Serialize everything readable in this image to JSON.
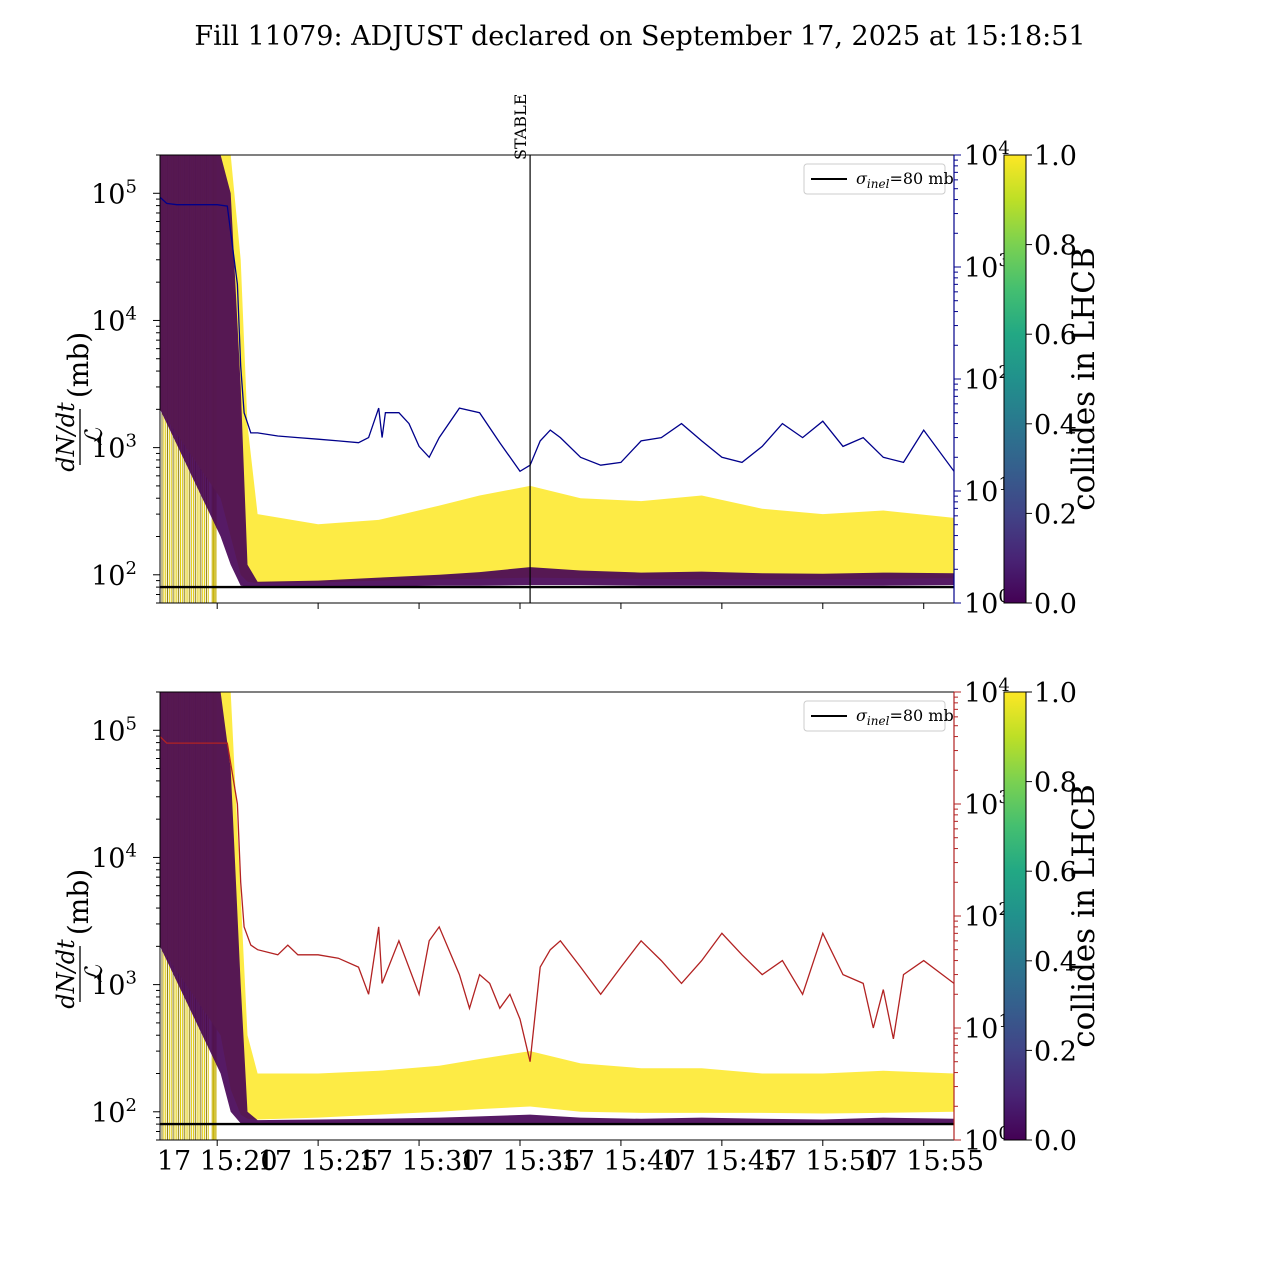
{
  "title": "Fill 11079: ADJUST declared on September 17, 2025 at 15:18:51",
  "colors": {
    "yellow": "#fde725",
    "purple": "#440154",
    "navy": "#00008b",
    "red": "#b22222",
    "black": "#000000"
  },
  "chart_data": [
    {
      "type": "line",
      "panel": "top",
      "ylabel": "dN/dt / ℒ (mb)",
      "y_scale": "log",
      "ylim": [
        60,
        200000
      ],
      "yticks": [
        "10^2",
        "10^3",
        "10^4",
        "10^5"
      ],
      "y2_scale": "log",
      "y2lim": [
        1,
        10000
      ],
      "y2ticks": [
        "10^0",
        "10^1",
        "10^2",
        "10^3",
        "10^4"
      ],
      "y2_color": "#00008b",
      "xlim": [
        "15:17:10",
        "15:56:30"
      ],
      "xticks": [],
      "annotation": {
        "label": "STABLE",
        "x": "15:35:30"
      },
      "legend": {
        "entries": [
          {
            "label": "σinel=80 mb",
            "color": "#000000"
          }
        ],
        "position": "upper right"
      },
      "reference_line": {
        "y": 80
      },
      "colorbar": {
        "label": "collides in LHCB",
        "range": [
          0.0,
          1.0
        ],
        "ticks": [
          "0.0",
          "0.2",
          "0.4",
          "0.6",
          "0.8",
          "1.0"
        ]
      },
      "band_series": [
        {
          "name": "collides",
          "color_value": 1.0,
          "x": [
            "15:17:10",
            "15:20:10",
            "15:20:40",
            "15:21:10",
            "15:21:30",
            "15:22:00",
            "15:25:00",
            "15:28:00",
            "15:31:00",
            "15:33:00",
            "15:35:30",
            "15:38:00",
            "15:41:00",
            "15:44:00",
            "15:47:00",
            "15:50:00",
            "15:53:00",
            "15:56:30"
          ],
          "low": [
            2000,
            400,
            200,
            100,
            88,
            86,
            87,
            90,
            92,
            93,
            95,
            94,
            93,
            92,
            92,
            92,
            93,
            94
          ],
          "high": [
            200000,
            200000,
            200000,
            30000,
            1500,
            300,
            250,
            270,
            350,
            420,
            500,
            400,
            380,
            420,
            330,
            300,
            320,
            280
          ]
        },
        {
          "name": "non-colliding",
          "color_value": 0.0,
          "x": [
            "15:17:10",
            "15:20:10",
            "15:20:40",
            "15:21:10",
            "15:21:30",
            "15:22:00",
            "15:25:00",
            "15:28:00",
            "15:31:00",
            "15:33:00",
            "15:35:30",
            "15:38:00",
            "15:41:00",
            "15:44:00",
            "15:47:00",
            "15:50:00",
            "15:53:00",
            "15:56:30"
          ],
          "low": [
            2000,
            200,
            120,
            82,
            81,
            80,
            81,
            81,
            82,
            82,
            83,
            83,
            82,
            82,
            82,
            82,
            82,
            83
          ],
          "high": [
            200000,
            200000,
            100000,
            3000,
            120,
            88,
            90,
            95,
            100,
            105,
            115,
            108,
            104,
            106,
            103,
            102,
            104,
            103
          ]
        }
      ],
      "series": [
        {
          "name": "",
          "axis": "right",
          "color": "#00008b",
          "x": [
            "15:17:10",
            "15:17:30",
            "15:18:00",
            "15:19:00",
            "15:20:00",
            "15:20:30",
            "15:21:00",
            "15:21:10",
            "15:21:20",
            "15:21:40",
            "15:22:00",
            "15:23:00",
            "15:24:00",
            "15:25:00",
            "15:26:00",
            "15:27:00",
            "15:27:30",
            "15:28:00",
            "15:28:10",
            "15:28:20",
            "15:29:00",
            "15:29:30",
            "15:30:00",
            "15:30:30",
            "15:31:00",
            "15:32:00",
            "15:33:00",
            "15:34:00",
            "15:35:00",
            "15:35:30",
            "15:36:00",
            "15:36:30",
            "15:37:00",
            "15:38:00",
            "15:39:00",
            "15:40:00",
            "15:41:00",
            "15:42:00",
            "15:43:00",
            "15:44:00",
            "15:45:00",
            "15:46:00",
            "15:47:00",
            "15:48:00",
            "15:49:00",
            "15:50:00",
            "15:51:00",
            "15:52:00",
            "15:53:00",
            "15:54:00",
            "15:55:00",
            "15:56:30"
          ],
          "values": [
            4200,
            3700,
            3600,
            3600,
            3600,
            3500,
            700,
            130,
            50,
            33,
            33,
            31,
            30,
            29,
            28,
            27,
            30,
            55,
            30,
            50,
            50,
            40,
            25,
            20,
            30,
            55,
            50,
            27,
            15,
            17,
            28,
            35,
            30,
            20,
            17,
            18,
            28,
            30,
            40,
            28,
            20,
            18,
            25,
            40,
            30,
            42,
            25,
            30,
            20,
            18,
            35,
            15
          ]
        }
      ]
    },
    {
      "type": "line",
      "panel": "bottom",
      "ylabel": "dN/dt / ℒ (mb)",
      "y_scale": "log",
      "ylim": [
        60,
        200000
      ],
      "yticks": [
        "10^2",
        "10^3",
        "10^4",
        "10^5"
      ],
      "y2_scale": "log",
      "y2lim": [
        1,
        10000
      ],
      "y2ticks": [
        "10^0",
        "10^1",
        "10^2",
        "10^3",
        "10^4"
      ],
      "y2_color": "#b22222",
      "xlim": [
        "15:17:10",
        "15:56:30"
      ],
      "xticks": [
        "17 15:20",
        "17 15:25",
        "17 15:30",
        "17 15:35",
        "17 15:40",
        "17 15:45",
        "17 15:50",
        "17 15:55"
      ],
      "legend": {
        "entries": [
          {
            "label": "σinel=80 mb",
            "color": "#000000"
          }
        ],
        "position": "upper right"
      },
      "reference_line": {
        "y": 80
      },
      "colorbar": {
        "label": "collides in LHCB",
        "range": [
          0.0,
          1.0
        ],
        "ticks": [
          "0.0",
          "0.2",
          "0.4",
          "0.6",
          "0.8",
          "1.0"
        ]
      },
      "band_series": [
        {
          "name": "collides",
          "color_value": 1.0,
          "x": [
            "15:17:10",
            "15:20:10",
            "15:20:40",
            "15:21:10",
            "15:21:30",
            "15:22:00",
            "15:25:00",
            "15:28:00",
            "15:31:00",
            "15:33:00",
            "15:35:30",
            "15:38:00",
            "15:41:00",
            "15:44:00",
            "15:47:00",
            "15:50:00",
            "15:53:00",
            "15:56:30"
          ],
          "low": [
            2000,
            400,
            150,
            95,
            88,
            87,
            90,
            95,
            100,
            105,
            110,
            100,
            98,
            98,
            98,
            97,
            98,
            100
          ],
          "high": [
            200000,
            200000,
            200000,
            5000,
            400,
            200,
            200,
            210,
            230,
            260,
            300,
            240,
            220,
            220,
            200,
            200,
            210,
            200
          ]
        },
        {
          "name": "non-colliding",
          "color_value": 0.0,
          "x": [
            "15:17:10",
            "15:20:10",
            "15:20:40",
            "15:21:10",
            "15:21:30",
            "15:22:00",
            "15:25:00",
            "15:28:00",
            "15:31:00",
            "15:33:00",
            "15:35:30",
            "15:38:00",
            "15:41:00",
            "15:44:00",
            "15:47:00",
            "15:50:00",
            "15:53:00",
            "15:56:30"
          ],
          "low": [
            2000,
            200,
            100,
            81,
            80,
            80,
            80,
            80,
            80,
            80,
            80,
            80,
            80,
            80,
            80,
            80,
            80,
            80
          ],
          "high": [
            200000,
            200000,
            50000,
            1000,
            100,
            86,
            87,
            88,
            90,
            92,
            95,
            90,
            88,
            90,
            88,
            87,
            90,
            88
          ]
        }
      ],
      "series": [
        {
          "name": "",
          "axis": "right",
          "color": "#b22222",
          "x": [
            "15:17:10",
            "15:17:30",
            "15:18:00",
            "15:19:00",
            "15:20:00",
            "15:20:30",
            "15:21:00",
            "15:21:10",
            "15:21:20",
            "15:21:40",
            "15:22:00",
            "15:23:00",
            "15:23:30",
            "15:24:00",
            "15:25:00",
            "15:26:00",
            "15:27:00",
            "15:27:30",
            "15:28:00",
            "15:28:10",
            "15:29:00",
            "15:30:00",
            "15:30:30",
            "15:31:00",
            "15:32:00",
            "15:32:30",
            "15:33:00",
            "15:33:30",
            "15:34:00",
            "15:34:30",
            "15:35:00",
            "15:35:30",
            "15:36:00",
            "15:36:30",
            "15:37:00",
            "15:38:00",
            "15:39:00",
            "15:40:00",
            "15:41:00",
            "15:42:00",
            "15:43:00",
            "15:44:00",
            "15:45:00",
            "15:46:00",
            "15:47:00",
            "15:48:00",
            "15:49:00",
            "15:50:00",
            "15:51:00",
            "15:52:00",
            "15:52:30",
            "15:53:00",
            "15:53:30",
            "15:54:00",
            "15:55:00",
            "15:56:30"
          ],
          "values": [
            4000,
            3500,
            3500,
            3500,
            3500,
            3500,
            1000,
            200,
            80,
            55,
            50,
            45,
            55,
            45,
            45,
            42,
            35,
            20,
            80,
            25,
            60,
            20,
            60,
            80,
            30,
            15,
            30,
            25,
            15,
            20,
            12,
            5,
            35,
            50,
            60,
            35,
            20,
            35,
            60,
            40,
            25,
            40,
            70,
            45,
            30,
            40,
            20,
            70,
            30,
            25,
            10,
            22,
            8,
            30,
            40,
            25
          ]
        }
      ]
    }
  ]
}
